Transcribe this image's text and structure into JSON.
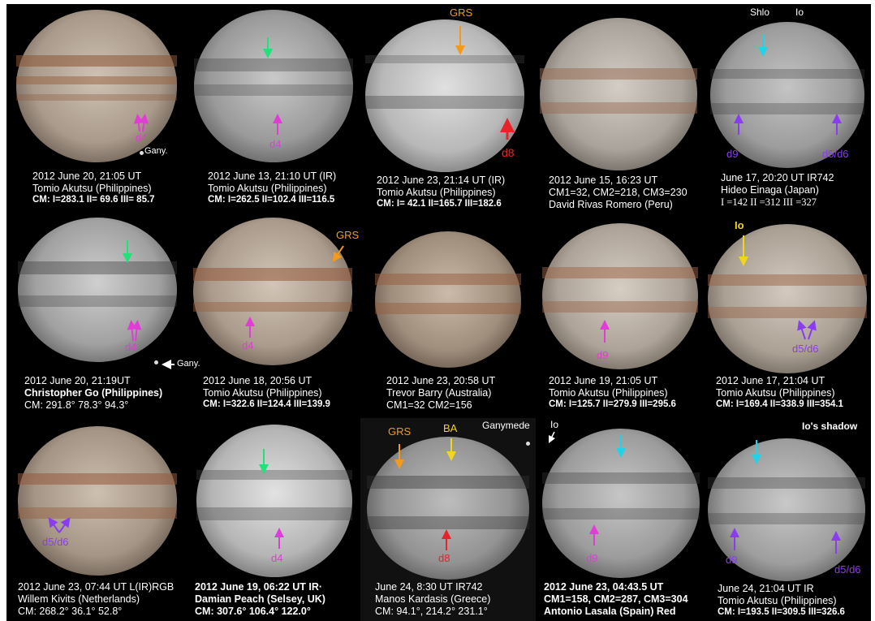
{
  "colors": {
    "magenta": "#e23cd6",
    "green": "#22e07a",
    "orange": "#f39a1c",
    "red": "#e8222a",
    "cyan": "#22d3e8",
    "violet": "#8a3cf0",
    "yellow": "#f2d61b",
    "white": "#ffffff"
  },
  "panels": [
    {
      "id": "p1",
      "style": "color",
      "caption": [
        "2012 June 20, 21:05 UT",
        "Tomio Akutsu (Philippines)",
        "CM:  I=283.1 II= 69.6 III= 85.7"
      ],
      "labels": [
        "d4",
        "Gany."
      ]
    },
    {
      "id": "p2",
      "style": "gray",
      "caption": [
        "2012 June 13, 21:10 UT  (IR)",
        "Tomio Akutsu (Philippines)",
        "CM:  I=262.5 II=102.4 III=116.5"
      ],
      "labels": [
        "d4"
      ]
    },
    {
      "id": "p3",
      "style": "gray",
      "caption": [
        "2012 June 23, 21:14 UT  (IR)",
        "Tomio Akutsu (Philippines)",
        "CM:  I= 42.1 II=165.7 III=182.6"
      ],
      "labels": [
        "GRS",
        "d8"
      ]
    },
    {
      "id": "p4",
      "style": "color",
      "caption": [
        "2012 June 15, 16:23 UT",
        "CM1=32, CM2=218, CM3=230",
        "David Rivas Romero (Peru)"
      ],
      "labels": []
    },
    {
      "id": "p5",
      "style": "gray",
      "caption": [
        "June 17, 20:20 UT  IR742",
        "Hideo Einaga (Japan)",
        "I =142  II =312  III =327"
      ],
      "labels": [
        "Shlo",
        "Io",
        "d9",
        "d5/d6"
      ]
    },
    {
      "id": "p6",
      "style": "gray",
      "caption": [
        "2012 June 20, 21:19UT",
        "Christopher Go  (Philippines)",
        "CM:    291.8°    78.3°    94.3°"
      ],
      "labels": [
        "d4",
        "Gany."
      ]
    },
    {
      "id": "p7",
      "style": "color",
      "caption": [
        "2012 June 18, 20:56 UT",
        "Tomio Akutsu (Philippines)",
        "CM: I=322.6 II=124.4 III=139.9"
      ],
      "labels": [
        "GRS",
        "d4"
      ]
    },
    {
      "id": "p8",
      "style": "color",
      "caption": [
        "2012 June 23, 20:58 UT",
        "Trevor Barry (Australia)",
        "CM1=32  CM2=156"
      ],
      "labels": []
    },
    {
      "id": "p9",
      "style": "color",
      "caption": [
        "2012 June 19, 21:05 UT",
        "Tomio Akutsu (Philippines)",
        "CM: I=125.7 II=279.9 III=295.6"
      ],
      "labels": [
        "d9"
      ]
    },
    {
      "id": "p10",
      "style": "color",
      "caption": [
        "2012 June 17, 21:04 UT",
        "Tomio Akutsu (Philippines)",
        "CM: I=169.4 II=338.9 III=354.1"
      ],
      "labels": [
        "Io",
        "d5/d6"
      ]
    },
    {
      "id": "p11",
      "style": "color",
      "caption": [
        "2012 June 23, 07:44 UT  L(IR)RGB",
        "Willem Kivits (Netherlands)",
        "CM:    268.2°    36.1°    52.8°"
      ],
      "labels": [
        "d5/d6"
      ]
    },
    {
      "id": "p12",
      "style": "gray",
      "caption": [
        "2012 June 19, 06:22 UT   IR·",
        "Damian Peach (Selsey, UK)",
        "CM:    307.6°   106.4°   122.0°"
      ],
      "labels": [
        "d4"
      ]
    },
    {
      "id": "p13",
      "style": "gray",
      "caption": [
        "June 24, 8:30  UT IR742",
        "Manos Kardasis (Greece)",
        "CM: 94.1°,  214.2°  231.1°"
      ],
      "labels": [
        "GRS",
        "BA",
        "Ganymede",
        "d8"
      ]
    },
    {
      "id": "p14",
      "style": "gray",
      "caption": [
        "2012 June 23, 04:43.5 UT",
        "CM1=158, CM2=287, CM3=304",
        "Antonio Lasala (Spain)   Red"
      ],
      "labels": [
        "Io",
        "d9"
      ]
    },
    {
      "id": "p15",
      "style": "gray",
      "caption": [
        "June 24, 21:04 UT        IR",
        "Tomio Akutsu (Philippines)",
        "CM:  I=193.5 II=309.5 III=326.6"
      ],
      "labels": [
        "Io's shadow",
        "d9",
        "d5/d6"
      ]
    }
  ]
}
